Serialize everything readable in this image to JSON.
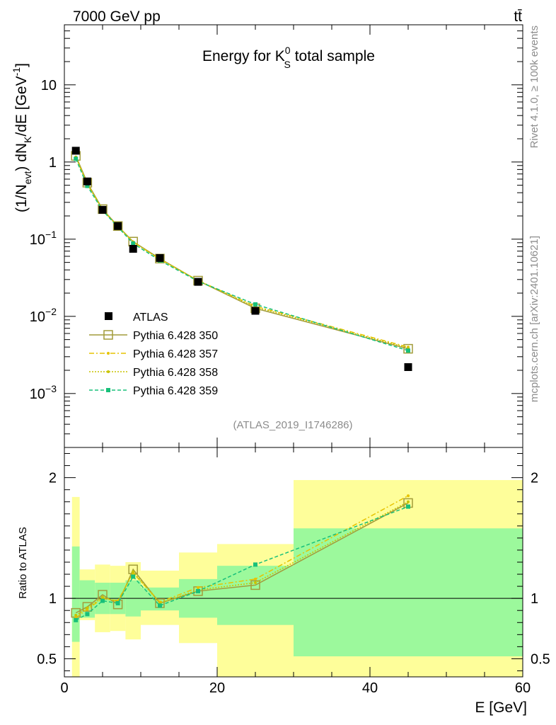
{
  "header": {
    "left": "7000 GeV pp",
    "right": "tt̄"
  },
  "side_labels": {
    "rivet": "Rivet 4.1.0, ≥ 100k events",
    "mcplots": "mcplots.cern.ch [arXiv:2401.10621]"
  },
  "colors": {
    "atlas": "#000000",
    "p350": "#a29c3a",
    "p357": "#e6c300",
    "p358": "#c9c400",
    "p359": "#18c07a",
    "band_inner": "#9cf99c",
    "band_outer": "#fefe9a"
  },
  "chart_data": [
    {
      "type": "line",
      "title_main": "Energy for K",
      "title_sup": "0",
      "title_sub": "S",
      "title_tail": " total sample",
      "watermark": "(ATLAS_2019_I1746286)",
      "ylabel": "(1/N",
      "ylabel_sub1": "evt",
      "ylabel_mid": ") dN",
      "ylabel_sub2": "K",
      "ylabel_tail": "/dE [GeV",
      "ylabel_sup": "-1",
      "ylabel_close": "]",
      "yscale": "log",
      "ylim": [
        0.0002,
        60
      ],
      "xlim": [
        0,
        60
      ],
      "y_ticks": [
        {
          "v": 10,
          "label": "10",
          "sup": ""
        },
        {
          "v": 1,
          "label": "1",
          "sup": ""
        },
        {
          "v": 0.1,
          "label": "10",
          "sup": "−1"
        },
        {
          "v": 0.01,
          "label": "10",
          "sup": "−2"
        },
        {
          "v": 0.001,
          "label": "10",
          "sup": "−3"
        }
      ],
      "x": [
        1.5,
        3,
        5,
        7,
        9,
        12.5,
        17.5,
        25,
        45
      ],
      "atlas": [
        1.4,
        0.56,
        0.24,
        0.148,
        0.075,
        0.057,
        0.028,
        0.0118,
        0.0022
      ],
      "series": [
        {
          "name": "Pythia 6.428 350",
          "key": "p350",
          "values": [
            1.2,
            0.54,
            0.245,
            0.148,
            0.093,
            0.056,
            0.029,
            0.0127,
            0.0038
          ]
        },
        {
          "name": "Pythia 6.428 357",
          "key": "p357",
          "values": [
            1.15,
            0.52,
            0.24,
            0.147,
            0.092,
            0.055,
            0.0292,
            0.0135,
            0.004
          ]
        },
        {
          "name": "Pythia 6.428 358",
          "key": "p358",
          "values": [
            1.16,
            0.52,
            0.242,
            0.146,
            0.092,
            0.055,
            0.029,
            0.0132,
            0.0039
          ]
        },
        {
          "name": "Pythia 6.428 359",
          "key": "p359",
          "values": [
            1.1,
            0.49,
            0.235,
            0.144,
            0.088,
            0.053,
            0.0285,
            0.0143,
            0.0036
          ]
        }
      ],
      "legend_atlas": "ATLAS"
    },
    {
      "type": "line",
      "ylabel": "Ratio to ATLAS",
      "xlabel": "E [GeV]",
      "ylim": [
        0.35,
        2.25
      ],
      "xlim": [
        0,
        60
      ],
      "y_ticks": [
        {
          "v": 0.5,
          "label": "0.5"
        },
        {
          "v": 1,
          "label": "1"
        },
        {
          "v": 2,
          "label": "2"
        }
      ],
      "x_ticks": [
        {
          "v": 0,
          "label": "0"
        },
        {
          "v": 20,
          "label": "20"
        },
        {
          "v": 40,
          "label": "40"
        },
        {
          "v": 60,
          "label": "60"
        }
      ],
      "bands": [
        {
          "x0": 1,
          "x1": 2,
          "inner": [
            0.64,
            1.43
          ],
          "outer": [
            0.35,
            1.84
          ]
        },
        {
          "x0": 2,
          "x1": 4,
          "inner": [
            0.84,
            1.15
          ],
          "outer": [
            0.82,
            1.24
          ]
        },
        {
          "x0": 4,
          "x1": 6,
          "inner": [
            0.87,
            1.13
          ],
          "outer": [
            0.72,
            1.28
          ]
        },
        {
          "x0": 6,
          "x1": 8,
          "inner": [
            0.87,
            1.13
          ],
          "outer": [
            0.73,
            1.27
          ]
        },
        {
          "x0": 8,
          "x1": 10,
          "inner": [
            0.85,
            1.15
          ],
          "outer": [
            0.66,
            1.3
          ]
        },
        {
          "x0": 10,
          "x1": 15,
          "inner": [
            0.9,
            1.09
          ],
          "outer": [
            0.78,
            1.23
          ]
        },
        {
          "x0": 15,
          "x1": 20,
          "inner": [
            0.84,
            1.16
          ],
          "outer": [
            0.63,
            1.38
          ]
        },
        {
          "x0": 20,
          "x1": 30,
          "inner": [
            0.78,
            1.27
          ],
          "outer": [
            0.35,
            1.45
          ]
        },
        {
          "x0": 30,
          "x1": 60,
          "inner": [
            0.52,
            1.58
          ],
          "outer": [
            0.35,
            1.98
          ]
        }
      ],
      "series": [
        {
          "key": "p350",
          "values": [
            0.88,
            0.93,
            1.03,
            0.95,
            1.24,
            0.96,
            1.06,
            1.11,
            1.79
          ]
        },
        {
          "key": "p357",
          "values": [
            0.84,
            0.91,
            1.0,
            0.98,
            1.21,
            0.97,
            1.09,
            1.16,
            1.85
          ]
        },
        {
          "key": "p358",
          "values": [
            0.86,
            0.92,
            1.01,
            0.97,
            1.22,
            0.96,
            1.07,
            1.13,
            1.8
          ]
        },
        {
          "key": "p359",
          "values": [
            0.82,
            0.87,
            0.98,
            0.96,
            1.18,
            0.94,
            1.06,
            1.28,
            1.76
          ]
        }
      ]
    }
  ]
}
